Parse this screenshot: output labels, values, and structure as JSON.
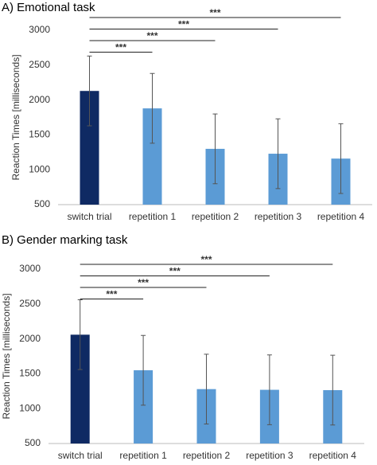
{
  "chart_data": [
    {
      "type": "bar",
      "title": "A) Emotional task",
      "y_label": "Reaction Times [milliseconds]",
      "categories": [
        "switch trial",
        "repetition 1",
        "repetition 2",
        "repetition 3",
        "repetition 4"
      ],
      "values": [
        2130,
        1880,
        1300,
        1230,
        1160
      ],
      "errors": [
        500,
        500,
        500,
        500,
        500
      ],
      "colors": [
        "#0f2a63",
        "#5b9bd5",
        "#5b9bd5",
        "#5b9bd5",
        "#5b9bd5"
      ],
      "ylim": [
        500,
        3000
      ],
      "yticks": [
        500,
        1000,
        1500,
        2000,
        2500,
        3000
      ],
      "grid": false,
      "brackets": [
        {
          "from": 0,
          "to": 1,
          "label": "***"
        },
        {
          "from": 0,
          "to": 2,
          "label": "***"
        },
        {
          "from": 0,
          "to": 3,
          "label": "***"
        },
        {
          "from": 0,
          "to": 4,
          "label": "***"
        }
      ]
    },
    {
      "type": "bar",
      "title": "B) Gender marking task",
      "y_label": "Reaction Times [milliseconds]",
      "categories": [
        "switch trial",
        "repetition 1",
        "repetition 2",
        "repetition 3",
        "repetition 4"
      ],
      "values": [
        2060,
        1550,
        1280,
        1270,
        1265
      ],
      "errors": [
        500,
        500,
        500,
        500,
        500
      ],
      "colors": [
        "#0f2a63",
        "#5b9bd5",
        "#5b9bd5",
        "#5b9bd5",
        "#5b9bd5"
      ],
      "ylim": [
        500,
        3000
      ],
      "yticks": [
        500,
        1000,
        1500,
        2000,
        2500,
        3000
      ],
      "grid": false,
      "brackets": [
        {
          "from": 0,
          "to": 1,
          "label": "***"
        },
        {
          "from": 0,
          "to": 2,
          "label": "***"
        },
        {
          "from": 0,
          "to": 3,
          "label": "***"
        },
        {
          "from": 0,
          "to": 4,
          "label": "***"
        }
      ]
    }
  ]
}
